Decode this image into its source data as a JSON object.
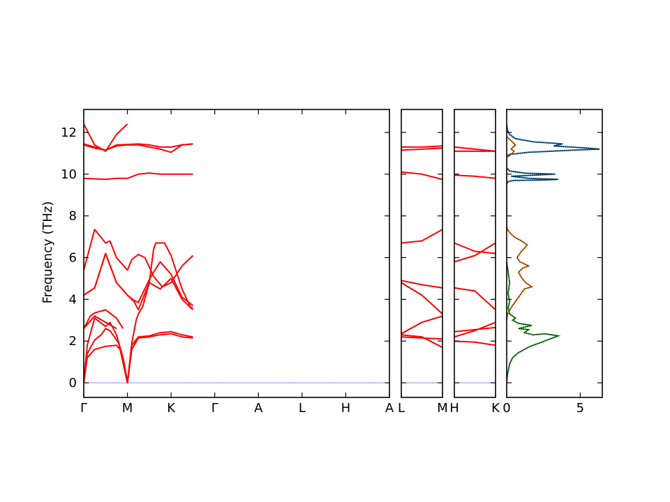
{
  "chart_data": {
    "type": "line",
    "ylabel": "Frequency (THz)",
    "ylim": [
      -0.7,
      13.1
    ],
    "yticks": [
      0,
      2,
      4,
      6,
      8,
      10,
      12
    ],
    "segments": [
      {
        "labels": [
          "Γ",
          "M",
          "K",
          "Γ",
          "A",
          "L",
          "H",
          "A"
        ],
        "bands": [
          [
            [
              0,
              0
            ],
            [
              0.08,
              1.2
            ],
            [
              0.25,
              1.6
            ],
            [
              0.5,
              1.75
            ],
            [
              0.75,
              1.8
            ],
            [
              0.85,
              1.55
            ],
            [
              0.92,
              1.0
            ],
            [
              1,
              0
            ],
            [
              1.1,
              1.6
            ],
            [
              1.25,
              2.15
            ],
            [
              1.5,
              2.2
            ],
            [
              1.75,
              2.3
            ],
            [
              2,
              2.35
            ],
            [
              2.25,
              2.2
            ],
            [
              2.5,
              2.15
            ]
          ],
          [
            [
              0,
              0
            ],
            [
              0.08,
              1.4
            ],
            [
              0.25,
              2.05
            ],
            [
              0.4,
              2.3
            ],
            [
              0.5,
              2.6
            ],
            [
              0.6,
              2.5
            ],
            [
              0.8,
              1.9
            ],
            [
              1,
              0
            ],
            [
              1.1,
              1.8
            ],
            [
              1.25,
              2.2
            ],
            [
              1.5,
              2.25
            ],
            [
              1.75,
              2.4
            ],
            [
              2,
              2.45
            ],
            [
              2.25,
              2.3
            ],
            [
              2.5,
              2.2
            ]
          ],
          [
            [
              0,
              0
            ],
            [
              0.08,
              1.8
            ],
            [
              0.25,
              3.1
            ],
            [
              0.5,
              2.7
            ],
            [
              0.6,
              2.9
            ],
            [
              0.75,
              2.3
            ],
            [
              0.9,
              1.2
            ],
            [
              1,
              0
            ],
            [
              1.1,
              1.9
            ],
            [
              1.2,
              3.0
            ],
            [
              1.25,
              3.3
            ],
            [
              1.35,
              3.65
            ],
            [
              1.5,
              4.8
            ],
            [
              1.55,
              5.6
            ],
            [
              1.6,
              6.4
            ],
            [
              1.65,
              6.7
            ],
            [
              1.85,
              6.7
            ],
            [
              2,
              6.1
            ],
            [
              2.25,
              4.5
            ],
            [
              2.45,
              3.6
            ],
            [
              2.5,
              3.6
            ]
          ],
          [
            [
              0,
              2.6
            ],
            [
              0.25,
              3.2
            ],
            [
              0.5,
              2.9
            ],
            [
              0.75,
              2.6
            ]
          ],
          [
            [
              0,
              2.6
            ],
            [
              0.15,
              3.2
            ],
            [
              0.25,
              3.35
            ],
            [
              0.5,
              3.5
            ],
            [
              0.75,
              3.1
            ],
            [
              0.9,
              2.6
            ]
          ],
          [
            [
              0,
              4.2
            ],
            [
              0.25,
              4.55
            ],
            [
              0.5,
              6.2
            ],
            [
              0.75,
              4.8
            ],
            [
              1,
              4.2
            ],
            [
              1.15,
              3.9
            ],
            [
              1.25,
              3.5
            ],
            [
              1.5,
              4.8
            ],
            [
              1.75,
              4.5
            ],
            [
              2,
              5.0
            ],
            [
              2.25,
              4.0
            ],
            [
              2.5,
              3.5
            ]
          ],
          [
            [
              0,
              4.2
            ],
            [
              0.25,
              4.55
            ],
            [
              0.5,
              6.2
            ],
            [
              0.75,
              4.8
            ],
            [
              1,
              4.2
            ],
            [
              1.15,
              3.95
            ],
            [
              1.25,
              3.85
            ],
            [
              1.5,
              4.95
            ],
            [
              1.6,
              5.3
            ],
            [
              1.75,
              5.8
            ],
            [
              2,
              5.2
            ],
            [
              2.25,
              4.1
            ],
            [
              2.5,
              3.7
            ]
          ],
          [
            [
              0,
              5.4
            ],
            [
              0.25,
              7.35
            ],
            [
              0.5,
              6.7
            ],
            [
              0.6,
              6.8
            ],
            [
              0.75,
              6.0
            ],
            [
              1,
              5.4
            ],
            [
              1.1,
              5.9
            ],
            [
              1.25,
              6.15
            ],
            [
              1.4,
              6.0
            ],
            [
              1.6,
              5.1
            ],
            [
              1.8,
              4.6
            ],
            [
              2,
              4.8
            ],
            [
              2.25,
              5.6
            ],
            [
              2.5,
              6.1
            ]
          ],
          [
            [
              0,
              9.8
            ],
            [
              0.5,
              9.75
            ],
            [
              0.75,
              9.8
            ],
            [
              1,
              9.8
            ],
            [
              1.25,
              10.0
            ],
            [
              1.5,
              10.05
            ],
            [
              1.75,
              10.0
            ],
            [
              2,
              10.0
            ],
            [
              2.5,
              10.0
            ]
          ],
          [
            [
              0,
              11.4
            ],
            [
              0.25,
              11.25
            ],
            [
              0.5,
              11.15
            ],
            [
              0.75,
              11.35
            ],
            [
              1,
              11.4
            ],
            [
              1.25,
              11.4
            ],
            [
              1.5,
              11.3
            ],
            [
              1.75,
              11.2
            ],
            [
              2,
              11.05
            ],
            [
              2.25,
              11.4
            ],
            [
              2.5,
              11.45
            ]
          ],
          [
            [
              0,
              11.45
            ],
            [
              0.25,
              11.3
            ],
            [
              0.5,
              11.15
            ],
            [
              0.75,
              11.4
            ],
            [
              1,
              11.42
            ],
            [
              1.25,
              11.45
            ],
            [
              1.5,
              11.4
            ],
            [
              1.75,
              11.3
            ],
            [
              2,
              11.3
            ],
            [
              2.25,
              11.4
            ],
            [
              2.5,
              11.45
            ]
          ],
          [
            [
              0,
              12.4
            ],
            [
              0.25,
              11.4
            ],
            [
              0.5,
              11.1
            ],
            [
              0.75,
              11.9
            ],
            [
              1,
              12.4
            ]
          ]
        ]
      },
      {
        "labels": [
          "L",
          "M"
        ],
        "bands": [
          [
            [
              0,
              2.2
            ],
            [
              0.5,
              2.15
            ],
            [
              1,
              2.1
            ]
          ],
          [
            [
              0,
              2.3
            ],
            [
              0.5,
              2.2
            ],
            [
              1,
              1.7
            ]
          ],
          [
            [
              0,
              2.35
            ],
            [
              0.5,
              2.9
            ],
            [
              1,
              3.2
            ]
          ],
          [
            [
              0,
              4.8
            ],
            [
              0.5,
              4.2
            ],
            [
              1,
              3.3
            ]
          ],
          [
            [
              0,
              4.9
            ],
            [
              0.5,
              4.7
            ],
            [
              1,
              4.55
            ]
          ],
          [
            [
              0,
              6.7
            ],
            [
              0.5,
              6.8
            ],
            [
              1,
              7.35
            ]
          ],
          [
            [
              0,
              10.1
            ],
            [
              0.5,
              10.0
            ],
            [
              1,
              9.75
            ]
          ],
          [
            [
              0,
              11.15
            ],
            [
              0.5,
              11.2
            ],
            [
              1,
              11.25
            ]
          ],
          [
            [
              0,
              11.3
            ],
            [
              0.5,
              11.3
            ],
            [
              1,
              11.35
            ]
          ]
        ]
      },
      {
        "labels": [
          "H",
          "K"
        ],
        "bands": [
          [
            [
              0,
              2.0
            ],
            [
              0.5,
              1.95
            ],
            [
              1,
              1.8
            ]
          ],
          [
            [
              0,
              2.2
            ],
            [
              0.5,
              2.5
            ],
            [
              1,
              2.9
            ]
          ],
          [
            [
              0,
              2.45
            ],
            [
              0.5,
              2.55
            ],
            [
              1,
              2.65
            ]
          ],
          [
            [
              0,
              4.55
            ],
            [
              0.5,
              4.4
            ],
            [
              1,
              3.5
            ]
          ],
          [
            [
              0,
              5.8
            ],
            [
              0.5,
              6.1
            ],
            [
              1,
              6.7
            ]
          ],
          [
            [
              0,
              6.7
            ],
            [
              0.5,
              6.3
            ],
            [
              1,
              6.2
            ]
          ],
          [
            [
              0,
              9.95
            ],
            [
              0.5,
              9.9
            ],
            [
              1,
              9.8
            ]
          ],
          [
            [
              0,
              11.1
            ],
            [
              0.5,
              11.1
            ],
            [
              1,
              11.1
            ]
          ],
          [
            [
              0,
              11.3
            ],
            [
              0.5,
              11.2
            ],
            [
              1,
              11.1
            ]
          ]
        ]
      }
    ],
    "dos": {
      "xlim": [
        0,
        6.5
      ],
      "xticks": [
        0,
        5
      ],
      "series": [
        {
          "color": "#1f77b4",
          "points": [
            [
              0,
              9.5
            ],
            [
              0.1,
              9.65
            ],
            [
              0.5,
              9.7
            ],
            [
              2.5,
              9.72
            ],
            [
              3.5,
              9.75
            ],
            [
              1.5,
              9.8
            ],
            [
              0.3,
              9.9
            ],
            [
              3.3,
              10.0
            ],
            [
              1.2,
              10.05
            ],
            [
              0.2,
              10.15
            ],
            [
              0,
              10.3
            ],
            [
              0,
              10.8
            ],
            [
              0.3,
              10.95
            ],
            [
              1.5,
              11.05
            ],
            [
              4.5,
              11.15
            ],
            [
              6.3,
              11.2
            ],
            [
              5.5,
              11.25
            ],
            [
              3.2,
              11.35
            ],
            [
              3.8,
              11.45
            ],
            [
              1.8,
              11.55
            ],
            [
              0.6,
              11.7
            ],
            [
              0.2,
              11.9
            ],
            [
              0.05,
              12.1
            ],
            [
              0,
              12.4
            ]
          ]
        },
        {
          "color": "#ff7f0e",
          "points": [
            [
              0,
              3.0
            ],
            [
              0.05,
              3.3
            ],
            [
              0.3,
              3.6
            ],
            [
              0.6,
              3.9
            ],
            [
              0.9,
              4.2
            ],
            [
              1.2,
              4.5
            ],
            [
              1.7,
              4.6
            ],
            [
              1.3,
              4.8
            ],
            [
              1.05,
              5.0
            ],
            [
              0.8,
              5.3
            ],
            [
              1.1,
              5.5
            ],
            [
              1.5,
              5.6
            ],
            [
              0.9,
              5.8
            ],
            [
              0.7,
              6.0
            ],
            [
              1.0,
              6.3
            ],
            [
              1.4,
              6.6
            ],
            [
              1.0,
              6.8
            ],
            [
              0.5,
              7.0
            ],
            [
              0.2,
              7.2
            ],
            [
              0.05,
              7.35
            ],
            [
              0,
              7.5
            ],
            [
              0,
              10.9
            ],
            [
              0.4,
              11.0
            ],
            [
              0.5,
              11.1
            ],
            [
              0.3,
              11.2
            ],
            [
              0.6,
              11.4
            ],
            [
              0.3,
              11.6
            ],
            [
              0,
              11.8
            ]
          ]
        },
        {
          "color": "#2ca02c",
          "points": [
            [
              0,
              0
            ],
            [
              0.05,
              0.4
            ],
            [
              0.2,
              0.9
            ],
            [
              0.4,
              1.2
            ],
            [
              0.8,
              1.45
            ],
            [
              1.2,
              1.6
            ],
            [
              1.6,
              1.75
            ],
            [
              2.2,
              1.9
            ],
            [
              3.5,
              2.25
            ],
            [
              2.6,
              2.35
            ],
            [
              1.8,
              2.3
            ],
            [
              1.2,
              2.4
            ],
            [
              1.5,
              2.55
            ],
            [
              0.8,
              2.6
            ],
            [
              1.7,
              2.75
            ],
            [
              0.8,
              2.85
            ],
            [
              0.4,
              3.0
            ],
            [
              0.6,
              3.1
            ],
            [
              0.2,
              3.3
            ],
            [
              0.1,
              3.6
            ],
            [
              0.2,
              3.9
            ],
            [
              0.1,
              4.3
            ],
            [
              0.2,
              4.8
            ],
            [
              0.1,
              5.3
            ],
            [
              0,
              5.8
            ]
          ]
        }
      ]
    }
  }
}
